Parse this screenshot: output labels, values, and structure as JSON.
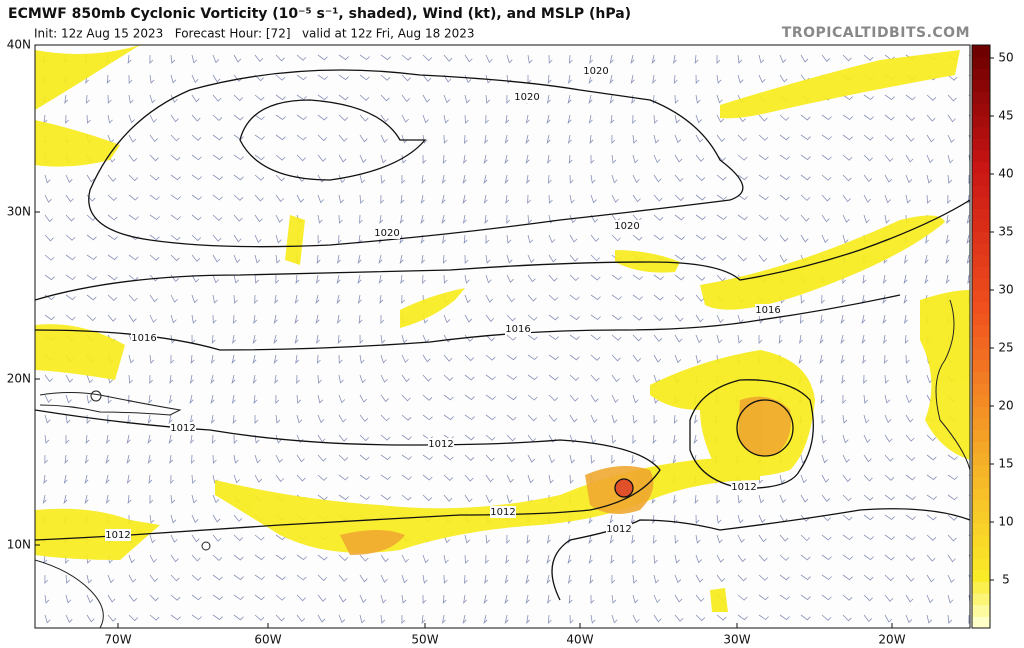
{
  "header": {
    "title": "ECMWF 850mb Cyclonic Vorticity (10⁻⁵ s⁻¹, shaded), Wind (kt), and MSLP (hPa)",
    "subtitle": "Init: 12z Aug 15 2023   Forecast Hour: [72]   valid at 12z Fri, Aug 18 2023",
    "watermark": "TROPICALTIDBITS.COM"
  },
  "map": {
    "lat_labels": [
      "40N",
      "30N",
      "20N",
      "10N"
    ],
    "lon_labels": [
      "70W",
      "60W",
      "50W",
      "40W",
      "30W",
      "20W"
    ],
    "isobar_labels": [
      "1020",
      "1020",
      "1020",
      "1020",
      "1016",
      "1016",
      "1016",
      "1012",
      "1012",
      "1012",
      "1012",
      "1012",
      "1012"
    ]
  },
  "colorbar": {
    "ticks": [
      5,
      10,
      15,
      20,
      25,
      30,
      35,
      40,
      45,
      50
    ]
  }
}
